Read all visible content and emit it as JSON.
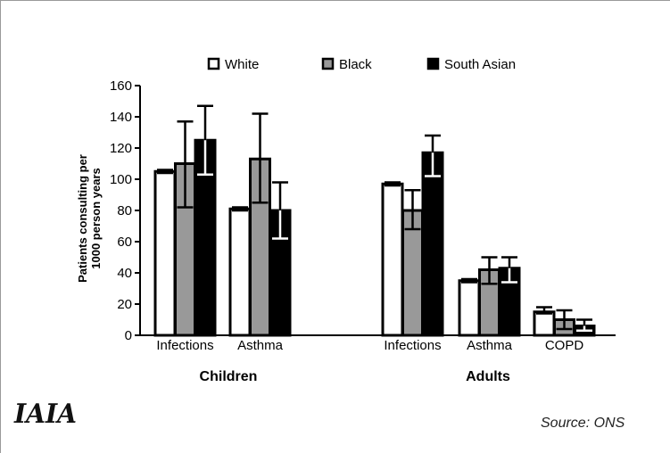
{
  "chart_data": {
    "type": "bar",
    "ylabel": "Patients consulting per\n1000 person years",
    "ylim": [
      0,
      160
    ],
    "yticks": [
      0,
      20,
      40,
      60,
      80,
      100,
      120,
      140,
      160
    ],
    "legend_position": "top",
    "groups": [
      {
        "name": "Children",
        "categories": [
          "Infections",
          "Asthma"
        ]
      },
      {
        "name": "Adults",
        "categories": [
          "Infections",
          "Asthma",
          "COPD"
        ]
      }
    ],
    "series": [
      {
        "name": "White",
        "color": "#ffffff",
        "values": [
          105,
          81,
          97,
          35,
          15
        ],
        "error": [
          [
            104,
            106
          ],
          [
            80,
            82
          ],
          [
            96,
            98
          ],
          [
            34,
            36
          ],
          [
            14,
            18
          ]
        ]
      },
      {
        "name": "Black",
        "color": "#999999",
        "values": [
          110,
          113,
          80,
          42,
          10
        ],
        "error": [
          [
            82,
            137
          ],
          [
            85,
            142
          ],
          [
            68,
            93
          ],
          [
            33,
            50
          ],
          [
            4,
            16
          ]
        ]
      },
      {
        "name": "South Asian",
        "color": "#000000",
        "values": [
          125,
          80,
          117,
          43,
          6
        ],
        "error": [
          [
            103,
            147
          ],
          [
            62,
            98
          ],
          [
            102,
            128
          ],
          [
            34,
            50
          ],
          [
            3,
            10
          ]
        ]
      }
    ]
  },
  "logo": {
    "text": "IAIA"
  },
  "source": {
    "text": "Source:  ONS"
  }
}
